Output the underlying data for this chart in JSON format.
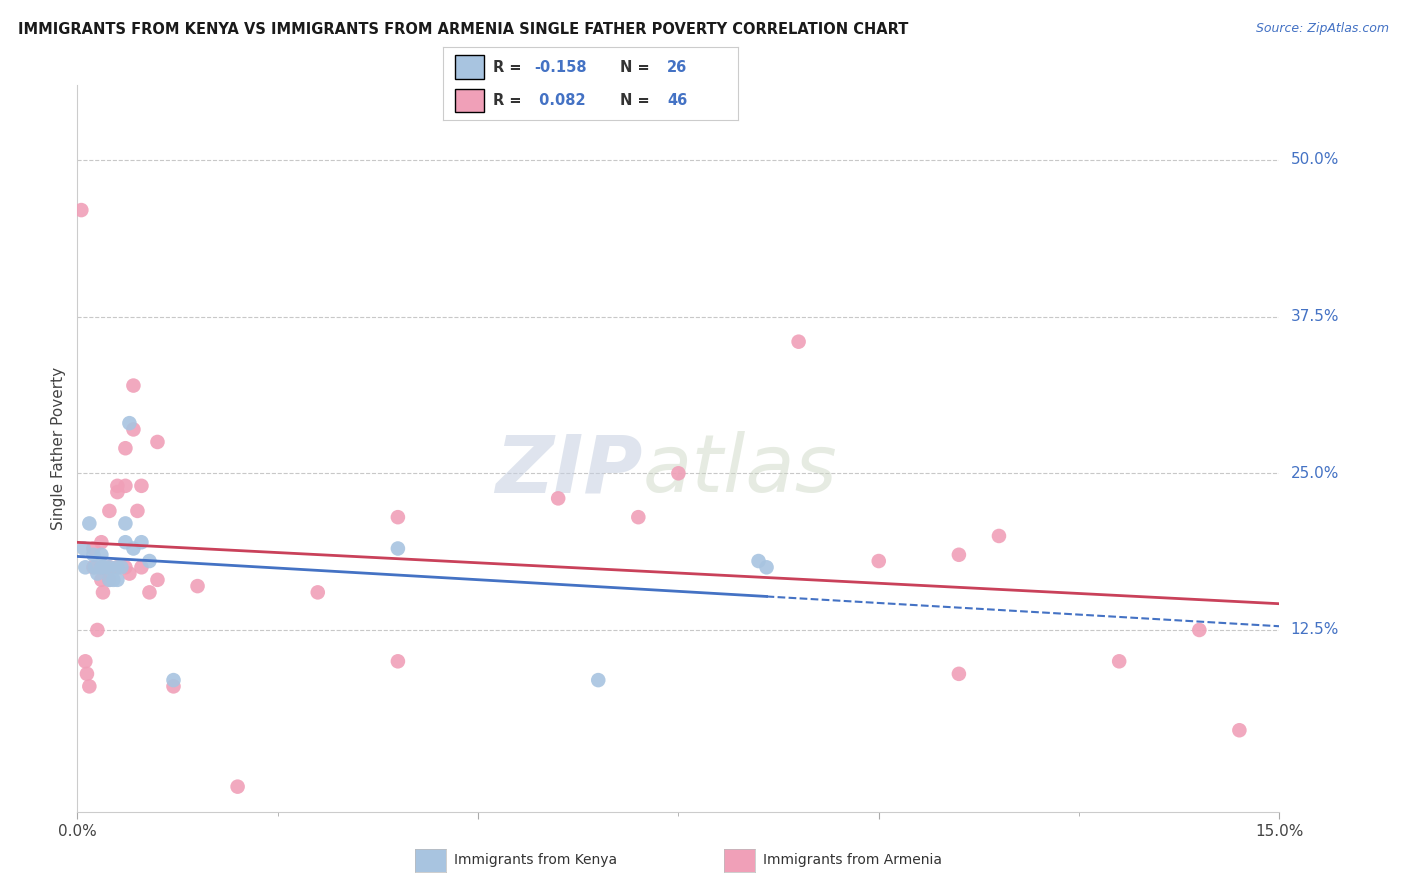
{
  "title": "IMMIGRANTS FROM KENYA VS IMMIGRANTS FROM ARMENIA SINGLE FATHER POVERTY CORRELATION CHART",
  "source": "Source: ZipAtlas.com",
  "ylabel": "Single Father Poverty",
  "right_yticks": [
    "50.0%",
    "37.5%",
    "25.0%",
    "12.5%"
  ],
  "right_ytick_vals": [
    0.5,
    0.375,
    0.25,
    0.125
  ],
  "kenya_color": "#a8c4e0",
  "armenia_color": "#f0a0b8",
  "kenya_line_color": "#4472c4",
  "armenia_line_color": "#c9415a",
  "xlim": [
    0.0,
    0.15
  ],
  "ylim": [
    -0.02,
    0.56
  ],
  "kenya_x": [
    0.0008,
    0.001,
    0.0015,
    0.002,
    0.0022,
    0.0025,
    0.003,
    0.003,
    0.0035,
    0.004,
    0.004,
    0.0045,
    0.005,
    0.005,
    0.0055,
    0.006,
    0.006,
    0.0065,
    0.007,
    0.008,
    0.009,
    0.012,
    0.04,
    0.065,
    0.085,
    0.086
  ],
  "kenya_y": [
    0.19,
    0.175,
    0.21,
    0.185,
    0.175,
    0.17,
    0.185,
    0.175,
    0.175,
    0.175,
    0.165,
    0.165,
    0.175,
    0.165,
    0.175,
    0.21,
    0.195,
    0.29,
    0.19,
    0.195,
    0.18,
    0.085,
    0.19,
    0.085,
    0.18,
    0.175
  ],
  "armenia_x": [
    0.0005,
    0.001,
    0.0012,
    0.0015,
    0.002,
    0.002,
    0.0025,
    0.003,
    0.003,
    0.003,
    0.0032,
    0.004,
    0.004,
    0.004,
    0.005,
    0.005,
    0.005,
    0.006,
    0.006,
    0.006,
    0.0065,
    0.007,
    0.007,
    0.0075,
    0.008,
    0.008,
    0.009,
    0.01,
    0.01,
    0.012,
    0.015,
    0.02,
    0.03,
    0.04,
    0.04,
    0.06,
    0.07,
    0.075,
    0.09,
    0.1,
    0.11,
    0.11,
    0.115,
    0.13,
    0.14,
    0.145
  ],
  "armenia_y": [
    0.46,
    0.1,
    0.09,
    0.08,
    0.19,
    0.175,
    0.125,
    0.195,
    0.175,
    0.165,
    0.155,
    0.175,
    0.165,
    0.22,
    0.24,
    0.235,
    0.175,
    0.27,
    0.24,
    0.175,
    0.17,
    0.32,
    0.285,
    0.22,
    0.24,
    0.175,
    0.155,
    0.275,
    0.165,
    0.08,
    0.16,
    0.0,
    0.155,
    0.215,
    0.1,
    0.23,
    0.215,
    0.25,
    0.355,
    0.18,
    0.185,
    0.09,
    0.2,
    0.1,
    0.125,
    0.045
  ],
  "kenya_R": -0.158,
  "kenya_N": 26,
  "armenia_R": 0.082,
  "armenia_N": 46,
  "watermark_zip": "ZIP",
  "watermark_atlas": "atlas",
  "background_color": "#ffffff",
  "grid_color": "#c8c8c8"
}
